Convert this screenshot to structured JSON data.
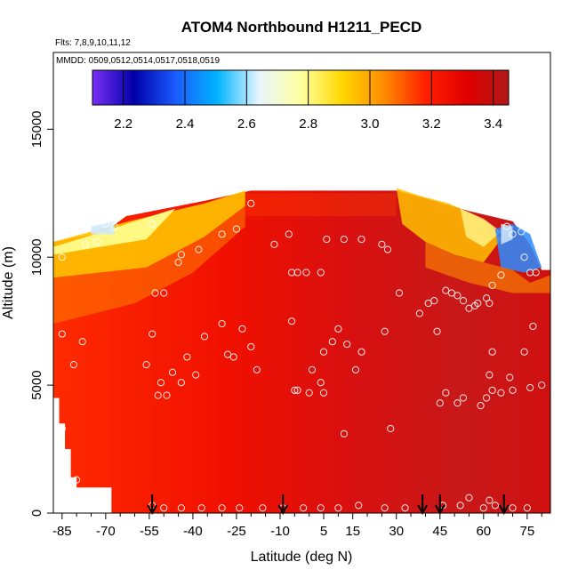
{
  "chart_data": {
    "type": "heatmap",
    "title": "ATOM4 Northbound H1211_PECD",
    "subtitle_flights": "Flts: 7,8,9,10,11,12",
    "subtitle_dates": "MMDD: 0509,0512,0514,0517,0518,0519",
    "xlabel": "Latitude (deg N)",
    "ylabel": "Altitude (m)",
    "xlim": [
      -88,
      83
    ],
    "ylim": [
      0,
      18000
    ],
    "x_ticks": [
      -85,
      -70,
      -55,
      -40,
      -25,
      -10,
      5,
      15,
      30,
      45,
      60,
      75
    ],
    "x_tick_labels": [
      "-85",
      "-70",
      "-55",
      "-40",
      "-25",
      "-10",
      "5",
      "15",
      "30",
      "45",
      "60",
      "75"
    ],
    "x_minor_ticks": [
      -80,
      -75,
      -65,
      -60,
      -50,
      -45,
      -35,
      -30,
      -20,
      -15,
      -5,
      0,
      10,
      20,
      25,
      35,
      40,
      50,
      55,
      65,
      70,
      80
    ],
    "y_ticks": [
      0,
      5000,
      10000,
      15000
    ],
    "y_tick_labels": [
      "0",
      "5000",
      "10000",
      "15000"
    ],
    "colorbar": {
      "range": [
        2.1,
        3.45
      ],
      "ticks": [
        2.2,
        2.4,
        2.6,
        2.8,
        3.0,
        3.2,
        3.4
      ],
      "tick_labels": [
        "2.2",
        "2.4",
        "2.6",
        "2.8",
        "3.0",
        "3.2",
        "3.4"
      ],
      "colors": [
        "#7b2ff7",
        "#0000a8",
        "#1a5cff",
        "#00b4ff",
        "#e8f6ff",
        "#ffffa0",
        "#ffd700",
        "#ff8c00",
        "#ff2000",
        "#e00000",
        "#b01818"
      ]
    },
    "profile_marker_latitudes": [
      -54,
      -9,
      39,
      45,
      67
    ],
    "series": [
      {
        "values": [
          {
            "lat": -85,
            "alt": 10000
          },
          {
            "lat": -85,
            "alt": 7000
          },
          {
            "lat": -85,
            "alt": 3300
          },
          {
            "lat": -81,
            "alt": 5800
          },
          {
            "lat": -78,
            "alt": 6700
          },
          {
            "lat": -80,
            "alt": 1300
          },
          {
            "lat": -77,
            "alt": 10500
          },
          {
            "lat": -73,
            "alt": 10600
          },
          {
            "lat": -70,
            "alt": 11300
          },
          {
            "lat": -67,
            "alt": 11200
          },
          {
            "lat": -54,
            "alt": 11300
          },
          {
            "lat": -53,
            "alt": 8600
          },
          {
            "lat": -50,
            "alt": 8600
          },
          {
            "lat": -54,
            "alt": 7000
          },
          {
            "lat": -56,
            "alt": 5800
          },
          {
            "lat": -51,
            "alt": 5100
          },
          {
            "lat": -52,
            "alt": 4600
          },
          {
            "lat": -49,
            "alt": 4600
          },
          {
            "lat": -47,
            "alt": 5500
          },
          {
            "lat": -44,
            "alt": 5100
          },
          {
            "lat": -42,
            "alt": 6100
          },
          {
            "lat": -45,
            "alt": 9800
          },
          {
            "lat": -44,
            "alt": 10100
          },
          {
            "lat": -38,
            "alt": 10300
          },
          {
            "lat": -39,
            "alt": 5400
          },
          {
            "lat": -36,
            "alt": 6900
          },
          {
            "lat": -30,
            "alt": 7400
          },
          {
            "lat": -28,
            "alt": 6200
          },
          {
            "lat": -26,
            "alt": 6100
          },
          {
            "lat": -23,
            "alt": 7200
          },
          {
            "lat": -20,
            "alt": 6500
          },
          {
            "lat": -18,
            "alt": 5600
          },
          {
            "lat": -20,
            "alt": 12100
          },
          {
            "lat": -30,
            "alt": 10900
          },
          {
            "lat": -25,
            "alt": 11100
          },
          {
            "lat": -12,
            "alt": 10500
          },
          {
            "lat": -7,
            "alt": 10900
          },
          {
            "lat": -6,
            "alt": 9400
          },
          {
            "lat": -4,
            "alt": 9400
          },
          {
            "lat": -1,
            "alt": 9400
          },
          {
            "lat": 4,
            "alt": 9400
          },
          {
            "lat": 6,
            "alt": 10700
          },
          {
            "lat": 12,
            "alt": 10700
          },
          {
            "lat": 18,
            "alt": 10700
          },
          {
            "lat": 25,
            "alt": 10500
          },
          {
            "lat": 27,
            "alt": 10300
          },
          {
            "lat": -6,
            "alt": 7500
          },
          {
            "lat": -5,
            "alt": 4800
          },
          {
            "lat": -4,
            "alt": 4800
          },
          {
            "lat": 0,
            "alt": 4700
          },
          {
            "lat": 1,
            "alt": 5600
          },
          {
            "lat": 4,
            "alt": 5100
          },
          {
            "lat": 5,
            "alt": 4700
          },
          {
            "lat": 5,
            "alt": 6300
          },
          {
            "lat": 8,
            "alt": 6700
          },
          {
            "lat": 10,
            "alt": 7200
          },
          {
            "lat": 13,
            "alt": 6600
          },
          {
            "lat": 16,
            "alt": 5600
          },
          {
            "lat": 18,
            "alt": 6300
          },
          {
            "lat": 26,
            "alt": 7100
          },
          {
            "lat": 31,
            "alt": 8600
          },
          {
            "lat": 28,
            "alt": 3300
          },
          {
            "lat": 12,
            "alt": 3100
          },
          {
            "lat": 38,
            "alt": 7800
          },
          {
            "lat": 41,
            "alt": 8200
          },
          {
            "lat": 43,
            "alt": 8300
          },
          {
            "lat": 44,
            "alt": 7100
          },
          {
            "lat": 47,
            "alt": 8700
          },
          {
            "lat": 49,
            "alt": 8600
          },
          {
            "lat": 51,
            "alt": 8500
          },
          {
            "lat": 53,
            "alt": 8300
          },
          {
            "lat": 55,
            "alt": 8000
          },
          {
            "lat": 57,
            "alt": 8100
          },
          {
            "lat": 58,
            "alt": 8200
          },
          {
            "lat": 61,
            "alt": 8400
          },
          {
            "lat": 62,
            "alt": 8200
          },
          {
            "lat": 63,
            "alt": 8900
          },
          {
            "lat": 66,
            "alt": 9300
          },
          {
            "lat": 68,
            "alt": 11200
          },
          {
            "lat": 70,
            "alt": 10900
          },
          {
            "lat": 73,
            "alt": 11000
          },
          {
            "lat": 74,
            "alt": 10000
          },
          {
            "lat": 76,
            "alt": 9400
          },
          {
            "lat": 78,
            "alt": 9400
          },
          {
            "lat": 74,
            "alt": 6300
          },
          {
            "lat": 77,
            "alt": 7300
          },
          {
            "lat": 76,
            "alt": 4900
          },
          {
            "lat": 80,
            "alt": 5000
          },
          {
            "lat": 69,
            "alt": 5300
          },
          {
            "lat": 70,
            "alt": 4800
          },
          {
            "lat": 66,
            "alt": 4700
          },
          {
            "lat": 62,
            "alt": 5400
          },
          {
            "lat": 63,
            "alt": 4800
          },
          {
            "lat": 61,
            "alt": 4500
          },
          {
            "lat": 59,
            "alt": 4200
          },
          {
            "lat": 53,
            "alt": 4500
          },
          {
            "lat": 51,
            "alt": 4300
          },
          {
            "lat": 47,
            "alt": 4700
          },
          {
            "lat": 45,
            "alt": 4300
          },
          {
            "lat": 63,
            "alt": 6300
          },
          {
            "lat": 55,
            "alt": 600
          },
          {
            "lat": 62,
            "alt": 500
          },
          {
            "lat": 64,
            "alt": 300
          },
          {
            "lat": 60,
            "alt": 200
          },
          {
            "lat": -54,
            "alt": 300
          },
          {
            "lat": -50,
            "alt": 200
          },
          {
            "lat": -44,
            "alt": 200
          },
          {
            "lat": -37,
            "alt": 200
          },
          {
            "lat": -30,
            "alt": 200
          },
          {
            "lat": -24,
            "alt": 200
          },
          {
            "lat": -16,
            "alt": 200
          },
          {
            "lat": -9,
            "alt": 200
          },
          {
            "lat": -2,
            "alt": 200
          },
          {
            "lat": 4,
            "alt": 200
          },
          {
            "lat": 10,
            "alt": 200
          },
          {
            "lat": 17,
            "alt": 300
          },
          {
            "lat": 26,
            "alt": 200
          },
          {
            "lat": 33,
            "alt": 200
          },
          {
            "lat": 46,
            "alt": 300
          },
          {
            "lat": 52,
            "alt": 300
          },
          {
            "lat": 70,
            "alt": 200
          },
          {
            "lat": 75,
            "alt": 200
          }
        ]
      }
    ]
  }
}
